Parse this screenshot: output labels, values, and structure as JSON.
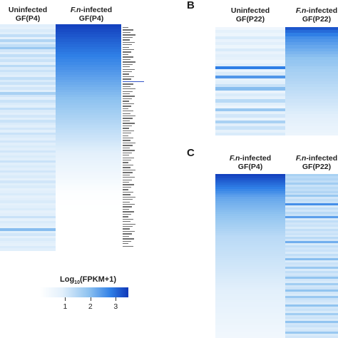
{
  "chart_data": [
    {
      "type": "heatmap",
      "panel": "",
      "columns": [
        {
          "label_line1": "Uninfected",
          "label_line2": "GF(P4)"
        },
        {
          "label_italic": "F.n",
          "label_line1_suffix": "-infected",
          "label_line2": "GF(P4)"
        }
      ],
      "row_count": 90,
      "values": [
        [
          0.9,
          3.4
        ],
        [
          0.8,
          3.35
        ],
        [
          1.0,
          3.3
        ],
        [
          0.9,
          3.25
        ],
        [
          1.3,
          3.2
        ],
        [
          0.8,
          3.15
        ],
        [
          1.5,
          3.1
        ],
        [
          1.0,
          3.05
        ],
        [
          1.3,
          3.0
        ],
        [
          1.8,
          2.95
        ],
        [
          1.1,
          2.9
        ],
        [
          0.9,
          2.85
        ],
        [
          1.3,
          2.8
        ],
        [
          1.0,
          2.75
        ],
        [
          1.2,
          2.7
        ],
        [
          0.9,
          2.65
        ],
        [
          1.4,
          2.6
        ],
        [
          1.0,
          2.55
        ],
        [
          1.2,
          2.5
        ],
        [
          1.0,
          2.45
        ],
        [
          0.9,
          2.4
        ],
        [
          1.3,
          2.35
        ],
        [
          1.0,
          2.3
        ],
        [
          1.2,
          2.25
        ],
        [
          0.9,
          2.2
        ],
        [
          1.1,
          2.15
        ],
        [
          0.9,
          2.1
        ],
        [
          1.6,
          2.05
        ],
        [
          1.1,
          2.0
        ],
        [
          0.9,
          1.95
        ],
        [
          1.2,
          1.9
        ],
        [
          1.0,
          1.85
        ],
        [
          0.9,
          1.8
        ],
        [
          1.3,
          1.75
        ],
        [
          1.0,
          1.7
        ],
        [
          0.9,
          1.65
        ],
        [
          1.1,
          1.6
        ],
        [
          0.9,
          1.55
        ],
        [
          1.2,
          1.5
        ],
        [
          1.0,
          1.45
        ],
        [
          0.9,
          1.4
        ],
        [
          1.1,
          1.35
        ],
        [
          0.9,
          1.3
        ],
        [
          1.2,
          1.25
        ],
        [
          1.0,
          1.2
        ],
        [
          0.9,
          1.15
        ],
        [
          1.1,
          1.1
        ],
        [
          0.9,
          1.05
        ],
        [
          1.0,
          1.0
        ],
        [
          0.9,
          0.95
        ],
        [
          1.1,
          0.9
        ],
        [
          0.9,
          0.85
        ],
        [
          1.0,
          0.8
        ],
        [
          0.9,
          0.75
        ],
        [
          1.2,
          0.7
        ],
        [
          0.9,
          0.65
        ],
        [
          1.0,
          0.6
        ],
        [
          0.9,
          0.55
        ],
        [
          1.1,
          0.5
        ],
        [
          0.9,
          0.45
        ],
        [
          1.0,
          0.4
        ],
        [
          0.8,
          0.35
        ],
        [
          1.1,
          0.3
        ],
        [
          0.9,
          0.25
        ],
        [
          1.0,
          0.2
        ],
        [
          0.8,
          0.15
        ],
        [
          0.9,
          0.1
        ],
        [
          1.0,
          0.08
        ],
        [
          0.8,
          0.06
        ],
        [
          0.9,
          0.05
        ],
        [
          1.0,
          0.04
        ],
        [
          0.8,
          0.03
        ],
        [
          0.9,
          0.02
        ],
        [
          1.0,
          0.02
        ],
        [
          0.8,
          0.01
        ],
        [
          0.9,
          0.01
        ],
        [
          1.2,
          0.0
        ],
        [
          0.8,
          0.0
        ],
        [
          1.0,
          0.0
        ],
        [
          0.9,
          0.0
        ],
        [
          0.8,
          0.0
        ],
        [
          2.0,
          0.0
        ],
        [
          0.9,
          0.0
        ],
        [
          1.1,
          0.0
        ],
        [
          0.8,
          0.0
        ],
        [
          1.0,
          0.0
        ],
        [
          0.9,
          0.0
        ],
        [
          0.8,
          0.0
        ],
        [
          1.0,
          0.0
        ],
        [
          0.9,
          0.0
        ]
      ]
    },
    {
      "type": "heatmap",
      "panel": "B",
      "columns": [
        {
          "label_line1": "Uninfected",
          "label_line2": "GF(P22)"
        },
        {
          "label_italic": "F.n",
          "label_line1_suffix": "-infected",
          "label_line2": "GF(P22)"
        }
      ],
      "row_count": 36,
      "values": [
        [
          0.5,
          3.2
        ],
        [
          0.8,
          3.0
        ],
        [
          0.6,
          2.8
        ],
        [
          1.0,
          2.6
        ],
        [
          0.7,
          2.5
        ],
        [
          0.9,
          2.4
        ],
        [
          0.6,
          2.3
        ],
        [
          1.0,
          2.2
        ],
        [
          0.7,
          2.1
        ],
        [
          0.9,
          2.0
        ],
        [
          0.8,
          1.9
        ],
        [
          0.6,
          1.85
        ],
        [
          0.9,
          1.8
        ],
        [
          2.8,
          1.7
        ],
        [
          0.7,
          1.65
        ],
        [
          1.0,
          1.6
        ],
        [
          2.5,
          1.55
        ],
        [
          0.8,
          1.5
        ],
        [
          0.9,
          1.45
        ],
        [
          1.2,
          1.4
        ],
        [
          2.0,
          1.35
        ],
        [
          0.7,
          1.3
        ],
        [
          1.0,
          1.25
        ],
        [
          0.8,
          1.2
        ],
        [
          1.4,
          1.15
        ],
        [
          0.9,
          1.1
        ],
        [
          0.6,
          1.05
        ],
        [
          1.8,
          1.0
        ],
        [
          0.8,
          0.95
        ],
        [
          1.1,
          0.9
        ],
        [
          0.7,
          0.85
        ],
        [
          1.6,
          0.8
        ],
        [
          0.9,
          0.75
        ],
        [
          1.2,
          0.7
        ],
        [
          0.8,
          0.65
        ],
        [
          1.0,
          0.6
        ]
      ]
    },
    {
      "type": "heatmap",
      "panel": "C",
      "columns": [
        {
          "label_italic": "F.n",
          "label_line1_suffix": "-infected",
          "label_line2": "GF(P4)"
        },
        {
          "label_italic": "F.n",
          "label_line1_suffix": "-infected",
          "label_line2": "GF(P22)"
        }
      ],
      "row_count": 78,
      "values": [
        [
          3.4,
          1.6
        ],
        [
          3.3,
          1.4
        ],
        [
          3.2,
          1.5
        ],
        [
          3.1,
          1.3
        ],
        [
          3.0,
          1.7
        ],
        [
          2.9,
          1.2
        ],
        [
          2.8,
          1.4
        ],
        [
          2.7,
          1.3
        ],
        [
          2.6,
          1.5
        ],
        [
          2.5,
          1.2
        ],
        [
          2.4,
          1.8
        ],
        [
          2.3,
          1.1
        ],
        [
          2.25,
          1.3
        ],
        [
          2.2,
          1.2
        ],
        [
          2.15,
          2.6
        ],
        [
          2.1,
          1.0
        ],
        [
          2.05,
          1.3
        ],
        [
          2.0,
          1.1
        ],
        [
          1.95,
          1.4
        ],
        [
          1.9,
          1.2
        ],
        [
          1.85,
          2.4
        ],
        [
          1.8,
          1.0
        ],
        [
          1.75,
          1.3
        ],
        [
          1.7,
          1.1
        ],
        [
          1.65,
          1.2
        ],
        [
          1.6,
          1.0
        ],
        [
          1.55,
          1.3
        ],
        [
          1.5,
          1.1
        ],
        [
          1.45,
          1.2
        ],
        [
          1.4,
          1.0
        ],
        [
          1.38,
          1.4
        ],
        [
          1.36,
          1.1
        ],
        [
          1.34,
          2.2
        ],
        [
          1.32,
          1.0
        ],
        [
          1.3,
          1.3
        ],
        [
          1.28,
          1.1
        ],
        [
          1.26,
          1.2
        ],
        [
          1.24,
          1.0
        ],
        [
          1.22,
          1.3
        ],
        [
          1.2,
          1.1
        ],
        [
          1.18,
          2.0
        ],
        [
          1.16,
          1.0
        ],
        [
          1.14,
          1.2
        ],
        [
          1.12,
          1.1
        ],
        [
          1.1,
          1.8
        ],
        [
          1.08,
          1.0
        ],
        [
          1.06,
          1.3
        ],
        [
          1.04,
          1.1
        ],
        [
          1.02,
          1.2
        ],
        [
          1.0,
          1.9
        ],
        [
          0.98,
          1.1
        ],
        [
          0.96,
          1.0
        ],
        [
          0.94,
          1.7
        ],
        [
          0.92,
          1.1
        ],
        [
          0.9,
          1.2
        ],
        [
          0.88,
          1.9
        ],
        [
          0.86,
          1.1
        ],
        [
          0.84,
          1.0
        ],
        [
          0.82,
          1.8
        ],
        [
          0.8,
          1.2
        ],
        [
          0.78,
          1.1
        ],
        [
          0.76,
          1.0
        ],
        [
          0.74,
          1.9
        ],
        [
          0.72,
          1.1
        ],
        [
          0.7,
          1.2
        ],
        [
          0.68,
          1.0
        ],
        [
          0.66,
          1.7
        ],
        [
          0.64,
          1.1
        ],
        [
          0.62,
          1.2
        ],
        [
          0.6,
          1.0
        ],
        [
          0.58,
          1.9
        ],
        [
          0.56,
          1.1
        ],
        [
          0.54,
          1.2
        ],
        [
          0.52,
          1.0
        ],
        [
          0.5,
          1.1
        ],
        [
          0.48,
          1.8
        ],
        [
          0.46,
          1.0
        ],
        [
          0.44,
          1.1
        ]
      ]
    }
  ],
  "legend": {
    "title_prefix": "Log",
    "title_sub": "10",
    "title_suffix": "(FPKM+1)",
    "ticks": [
      {
        "label": "1",
        "value": 1
      },
      {
        "label": "2",
        "value": 2
      },
      {
        "label": "3",
        "value": 3
      }
    ],
    "min": 0,
    "max": 3.5
  },
  "colors": {
    "low": "#ffffff",
    "mid": "#8fc3f0",
    "high": "#1038b8"
  }
}
